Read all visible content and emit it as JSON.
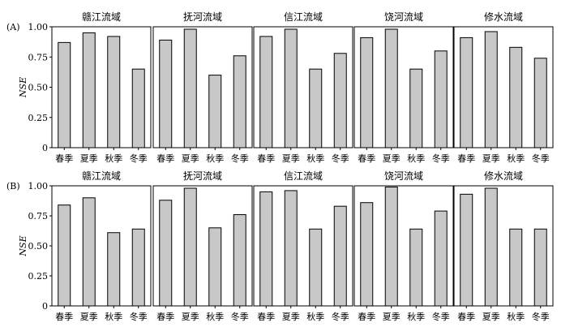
{
  "chart_data": [
    {
      "type": "bar",
      "row_label": "(A)",
      "ylabel": "NSE",
      "ylim": [
        0,
        1.0
      ],
      "yticks": [
        "0",
        "0.25",
        "0.50",
        "0.75",
        "1.00"
      ],
      "categories": [
        "春季",
        "夏季",
        "秋季",
        "冬季"
      ],
      "bar_color": "#c8c8c8",
      "panels": [
        {
          "title": "赣江流域",
          "values": [
            0.87,
            0.95,
            0.92,
            0.65
          ]
        },
        {
          "title": "抚河流域",
          "values": [
            0.89,
            0.98,
            0.6,
            0.76
          ]
        },
        {
          "title": "信江流域",
          "values": [
            0.92,
            0.98,
            0.65,
            0.78
          ]
        },
        {
          "title": "饶河流域",
          "values": [
            0.91,
            0.98,
            0.65,
            0.8
          ]
        },
        {
          "title": "修水流域",
          "values": [
            0.91,
            0.96,
            0.83,
            0.74
          ]
        }
      ]
    },
    {
      "type": "bar",
      "row_label": "(B)",
      "ylabel": "NSE",
      "ylim": [
        0,
        1.0
      ],
      "yticks": [
        "0",
        "0.25",
        "0.50",
        "0.75",
        "1.00"
      ],
      "categories": [
        "春季",
        "夏季",
        "秋季",
        "冬季"
      ],
      "bar_color": "#c8c8c8",
      "panels": [
        {
          "title": "赣江流域",
          "values": [
            0.84,
            0.9,
            0.61,
            0.64
          ]
        },
        {
          "title": "抚河流域",
          "values": [
            0.88,
            0.98,
            0.65,
            0.76
          ]
        },
        {
          "title": "信江流域",
          "values": [
            0.95,
            0.96,
            0.64,
            0.83
          ]
        },
        {
          "title": "饶河流域",
          "values": [
            0.86,
            0.99,
            0.64,
            0.79
          ]
        },
        {
          "title": "修水流域",
          "values": [
            0.93,
            0.98,
            0.64,
            0.64
          ]
        }
      ]
    }
  ]
}
